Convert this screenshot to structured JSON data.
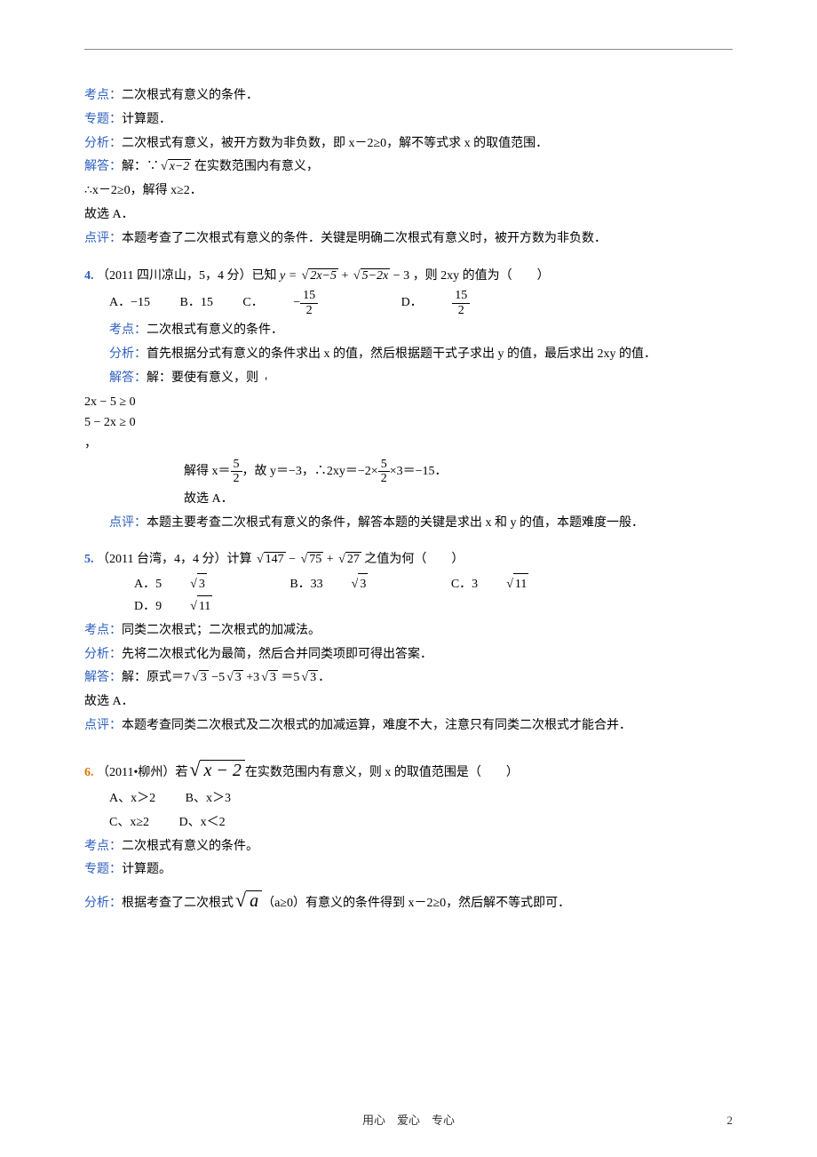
{
  "border_line": "─────────────────────────────────────────────────────────────",
  "q3_recap": {
    "l1_label": "考点：",
    "l1": "二次根式有意义的条件．",
    "l2_label": "专题：",
    "l2": "计算题．",
    "l3_label": "分析：",
    "l3": "二次根式有意义，被开方数为非负数，即 x－2≥0，解不等式求 x 的取值范围．",
    "l4_label": "解答：",
    "l4a": "解：∵",
    "l4_rad": "x−2",
    "l4b": " 在实数范围内有意义，",
    "l5": "∴x－2≥0，解得 x≥2．",
    "l6": "故选 A．",
    "l7_label": "点评：",
    "l7": "本题考查了二次根式有意义的条件．关键是明确二次根式有意义时，被开方数为非负数．"
  },
  "q4": {
    "num": "4.",
    "stem_a": "（2011 四川凉山，5，4 分）已知 ",
    "y_eq": "y = ",
    "rad1": "2x−5",
    "plus": " + ",
    "rad2": "5−2x",
    "minus3": " − 3",
    "stem_b": "，则 2xy 的值为（　　）",
    "optA": "A．−15",
    "optB": "B．15",
    "optC_pre": "C．",
    "optC_num": "15",
    "optC_den": "2",
    "optD_pre": "D．",
    "optD_num": "15",
    "optD_den": "2",
    "kp_label": "考点：",
    "kp": "二次根式有意义的条件．",
    "fx_label": "分析：",
    "fx": "首先根据分式有意义的条件求出 x 的值，然后根据题干式子求出 y 的值，最后求出 2xy 的值．",
    "jd_label": "解答：",
    "jd_a": "解：要使有意义，则",
    "case1": "2x − 5 ≥ 0",
    "case2": "5 − 2x ≥ 0",
    "comma": "，",
    "jd_b1": "解得 x＝",
    "jd_b_num": "5",
    "jd_b_den": "2",
    "jd_b2": "，故 y＝−3，∴2xy＝−2×",
    "jd_b3": "×3＝−15．",
    "jd_c": "故选 A．",
    "dp_label": "点评：",
    "dp": "本题主要考查二次根式有意义的条件，解答本题的关键是求出 x 和 y 的值，本题难度一般．"
  },
  "q5": {
    "num": "5.",
    "stem_a": "（2011 台湾，4，4 分）计算 ",
    "r1": "147",
    "minus": " − ",
    "r2": "75",
    "plus": " + ",
    "r3": "27",
    "stem_b": " 之值为何（　　）",
    "optA_pre": "A．5",
    "optA_rad": "3",
    "optB_pre": "B．33",
    "optB_rad": "3",
    "optC_pre": "C．3",
    "optC_rad": "11",
    "optD_pre": "D．9",
    "optD_rad": "11",
    "kp_label": "考点：",
    "kp": "同类二次根式；二次根式的加减法。",
    "fx_label": "分析：",
    "fx": "先将二次根式化为最简，然后合并同类项即可得出答案．",
    "jd_label": "解答：",
    "jd_a": "解：原式＝7",
    "jd_r1": "3",
    "jd_m1": " −5",
    "jd_r2": "3",
    "jd_m2": " +3",
    "jd_r3": "3",
    "jd_m3": " ＝5",
    "jd_r4": "3",
    "jd_end": "．",
    "jd_b": "故选 A．",
    "dp_label": "点评：",
    "dp": "本题考查同类二次根式及二次根式的加减运算，难度不大，注意只有同类二次根式才能合并．"
  },
  "q6": {
    "num": "6.",
    "stem_a": "（2011•柳州）若",
    "rad": "x − 2",
    "stem_b": "在实数范围内有意义，则 x 的取值范围是（　　）",
    "optA": "A、x＞2",
    "optB": "B、x＞3",
    "optC": "C、x≥2",
    "optD": "D、x＜2",
    "kp_label": "考点：",
    "kp": "二次根式有意义的条件。",
    "zt_label": "专题：",
    "zt": "计算题。",
    "fx_label": "分析：",
    "fx_a": "根据考查了二次根式",
    "fx_rad": "a",
    "fx_b": "（a≥0）有意义的条件得到 x－2≥0，然后解不等式即可．"
  },
  "footer": "用心　爱心　专心",
  "pagenum": "2",
  "colors": {
    "label": "#2c5fbf",
    "orange": "#d97706",
    "text": "#000000",
    "bg": "#ffffff"
  }
}
